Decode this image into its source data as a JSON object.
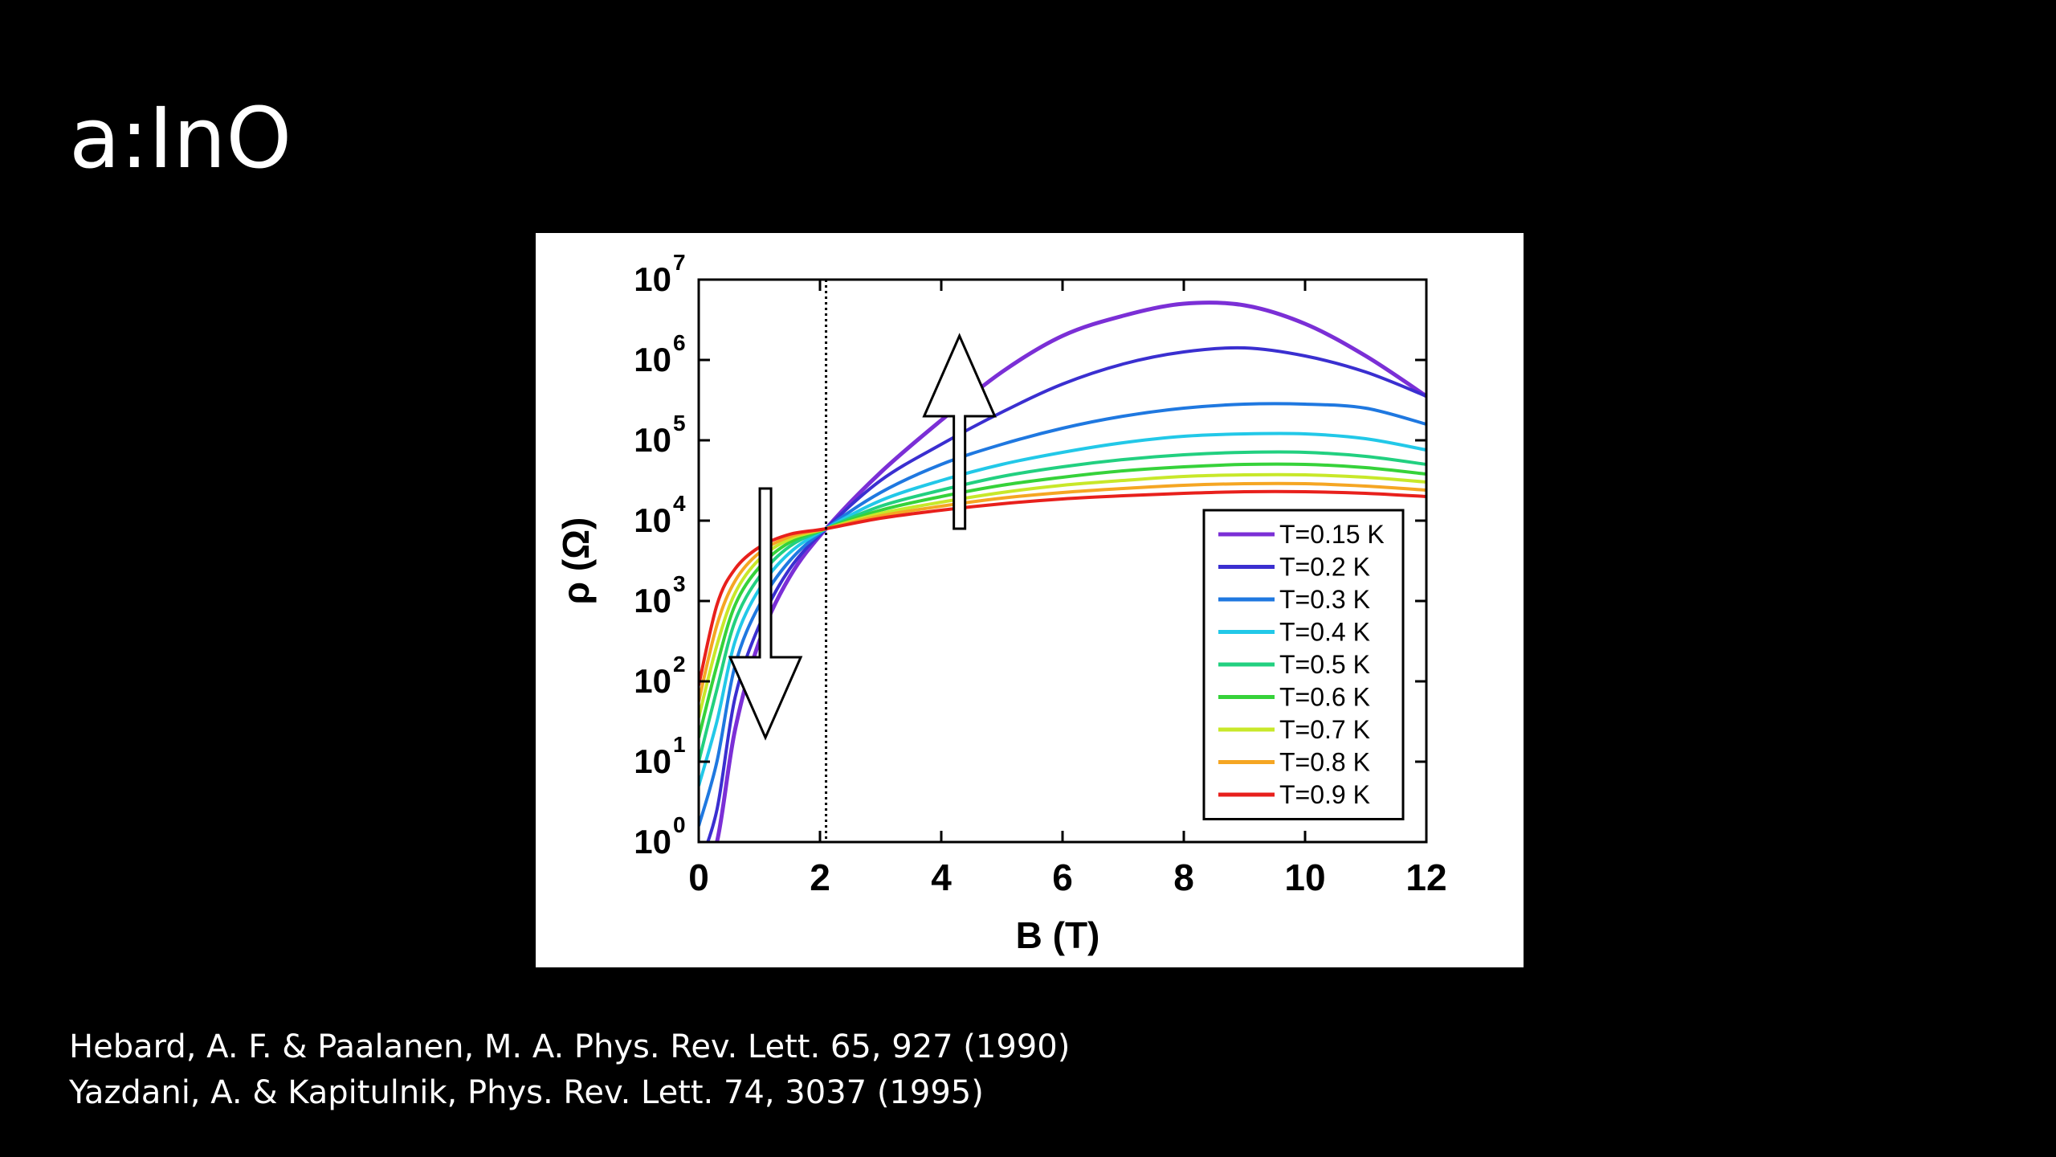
{
  "slide": {
    "title": "a:InO",
    "references": [
      "Hebard, A. F. & Paalanen, M. A. Phys. Rev. Lett. 65, 927 (1990)",
      "Yazdani, A. & Kapitulnik, Phys. Rev. Lett. 74, 3037 (1995)"
    ]
  },
  "chart_data": {
    "type": "line",
    "title": "",
    "xlabel": "B (T)",
    "ylabel": "ρ (Ω)",
    "xlim": [
      0,
      12
    ],
    "ylim_log10": [
      0,
      7
    ],
    "y_scale": "log",
    "x_ticks": [
      "0",
      "2",
      "4",
      "6",
      "8",
      "10",
      "12"
    ],
    "y_tick_bases": [
      "10",
      "10",
      "10",
      "10",
      "10",
      "10",
      "10",
      "10"
    ],
    "y_tick_exponents": [
      "0",
      "1",
      "2",
      "3",
      "4",
      "5",
      "6",
      "7"
    ],
    "grid": false,
    "legend_position": "lower-right",
    "crossing_line_x": 2.1,
    "arrows": [
      {
        "direction": "down",
        "x": 1.1,
        "from_log10": 4.4,
        "to_log10": 1.3
      },
      {
        "direction": "up",
        "x": 4.3,
        "from_log10": 3.9,
        "to_log10": 6.3
      }
    ],
    "x": [
      0,
      0.3,
      0.6,
      1.0,
      1.5,
      2.1,
      3,
      4,
      5,
      6,
      7,
      8,
      9,
      10,
      11,
      12
    ],
    "series": [
      {
        "name": "T=0.15 K",
        "color": "#7b2fd6",
        "log10_values": [
          -0.5,
          0.0,
          1.4,
          2.5,
          3.3,
          3.9,
          4.6,
          5.25,
          5.85,
          6.3,
          6.55,
          6.7,
          6.68,
          6.45,
          6.05,
          5.55
        ]
      },
      {
        "name": "T=0.2 K",
        "color": "#3a2fd0",
        "log10_values": [
          -0.3,
          0.4,
          1.8,
          2.7,
          3.4,
          3.9,
          4.5,
          4.95,
          5.35,
          5.7,
          5.95,
          6.1,
          6.15,
          6.05,
          5.85,
          5.55
        ]
      },
      {
        "name": "T=0.3 K",
        "color": "#1f78e0",
        "log10_values": [
          0.2,
          1.0,
          2.2,
          2.95,
          3.5,
          3.9,
          4.35,
          4.7,
          4.95,
          5.15,
          5.3,
          5.4,
          5.45,
          5.45,
          5.4,
          5.2
        ]
      },
      {
        "name": "T=0.4 K",
        "color": "#22c8e8",
        "log10_values": [
          0.7,
          1.5,
          2.5,
          3.15,
          3.6,
          3.9,
          4.25,
          4.5,
          4.7,
          4.85,
          4.97,
          5.05,
          5.08,
          5.08,
          5.02,
          4.88
        ]
      },
      {
        "name": "T=0.5 K",
        "color": "#22d080",
        "log10_values": [
          1.0,
          1.9,
          2.75,
          3.3,
          3.68,
          3.9,
          4.18,
          4.38,
          4.55,
          4.67,
          4.76,
          4.82,
          4.85,
          4.85,
          4.8,
          4.7
        ]
      },
      {
        "name": "T=0.6 K",
        "color": "#36d23a",
        "log10_values": [
          1.3,
          2.2,
          2.95,
          3.42,
          3.73,
          3.9,
          4.13,
          4.3,
          4.44,
          4.54,
          4.62,
          4.67,
          4.7,
          4.7,
          4.66,
          4.58
        ]
      },
      {
        "name": "T=0.7 K",
        "color": "#c8e82a",
        "log10_values": [
          1.55,
          2.45,
          3.1,
          3.52,
          3.77,
          3.9,
          4.09,
          4.23,
          4.35,
          4.44,
          4.5,
          4.55,
          4.57,
          4.57,
          4.54,
          4.48
        ]
      },
      {
        "name": "T=0.8 K",
        "color": "#f5a623",
        "log10_values": [
          1.75,
          2.7,
          3.25,
          3.6,
          3.8,
          3.9,
          4.06,
          4.18,
          4.28,
          4.35,
          4.4,
          4.44,
          4.46,
          4.46,
          4.43,
          4.38
        ]
      },
      {
        "name": "T=0.9 K",
        "color": "#e8201c",
        "log10_values": [
          1.95,
          2.95,
          3.4,
          3.67,
          3.83,
          3.9,
          4.03,
          4.13,
          4.21,
          4.27,
          4.31,
          4.34,
          4.36,
          4.36,
          4.34,
          4.3
        ]
      }
    ]
  }
}
